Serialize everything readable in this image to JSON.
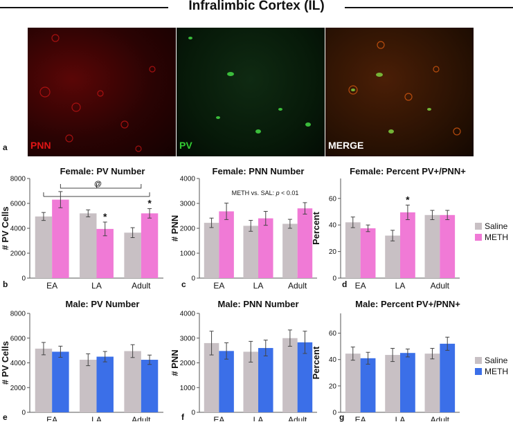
{
  "figure_title": "Infralimbic Cortex (IL)",
  "micrographs": [
    {
      "label": "PNN",
      "label_color": "#e01515"
    },
    {
      "label": "PV",
      "label_color": "#33cc33"
    },
    {
      "label": "MERGE",
      "label_color": "#ffffff"
    }
  ],
  "panel_letters": {
    "a": "a",
    "b": "b",
    "c": "c",
    "d": "d",
    "e": "e",
    "f": "f",
    "g": "g"
  },
  "legends": {
    "female": [
      {
        "name": "Saline",
        "color": "#c8c0c4"
      },
      {
        "name": "METH",
        "color": "#f07ad6"
      }
    ],
    "male": [
      {
        "name": "Saline",
        "color": "#c8c0c4"
      },
      {
        "name": "METH",
        "color": "#3b6fe8"
      }
    ]
  },
  "chart_data": [
    {
      "id": "b",
      "type": "bar",
      "title": "Female: PV Number",
      "xlabel": "",
      "ylabel": "# PV Cells",
      "categories": [
        "EA",
        "LA",
        "Adult"
      ],
      "ylim": [
        0,
        8000
      ],
      "yticks": [
        0,
        2000,
        4000,
        6000,
        8000
      ],
      "series": [
        {
          "name": "Saline",
          "values": [
            4950,
            5200,
            3650
          ],
          "errors": [
            320,
            280,
            400
          ]
        },
        {
          "name": "METH",
          "values": [
            6300,
            3950,
            5200
          ],
          "errors": [
            650,
            550,
            380
          ]
        }
      ],
      "annotations": {
        "stars": [
          [
            1,
            1
          ],
          [
            2,
            1
          ]
        ],
        "bracket_label": "@"
      }
    },
    {
      "id": "c",
      "type": "bar",
      "title": "Female: PNN Number",
      "xlabel": "",
      "ylabel": "# PNN",
      "categories": [
        "EA",
        "LA",
        "Adult"
      ],
      "ylim": [
        0,
        4000
      ],
      "yticks": [
        0,
        1000,
        2000,
        3000,
        4000
      ],
      "series": [
        {
          "name": "Saline",
          "values": [
            2220,
            2100,
            2180
          ],
          "errors": [
            190,
            220,
            180
          ]
        },
        {
          "name": "METH",
          "values": [
            2680,
            2400,
            2800
          ],
          "errors": [
            330,
            280,
            230
          ]
        }
      ],
      "annotations": {
        "note_prefix": "METH vs. SAL: ",
        "note_p": "p",
        "note_suffix": " < 0.01"
      }
    },
    {
      "id": "d",
      "type": "bar",
      "title": "Female: Percent PV+/PNN+",
      "xlabel": "",
      "ylabel": "Percent",
      "categories": [
        "EA",
        "LA",
        "Adult"
      ],
      "ylim": [
        0,
        75
      ],
      "yticks": [
        0,
        20,
        40,
        60
      ],
      "series": [
        {
          "name": "Saline",
          "values": [
            42,
            32,
            47.5
          ],
          "errors": [
            4,
            4,
            3.5
          ]
        },
        {
          "name": "METH",
          "values": [
            37.5,
            49.5,
            47.5
          ],
          "errors": [
            2.5,
            5.5,
            3.5
          ]
        }
      ],
      "annotations": {
        "stars": [
          [
            1,
            1
          ]
        ]
      }
    },
    {
      "id": "e",
      "type": "bar",
      "title": "Male: PV Number",
      "xlabel": "",
      "ylabel": "# PV Cells",
      "categories": [
        "EA",
        "LA",
        "Adult"
      ],
      "ylim": [
        0,
        8000
      ],
      "yticks": [
        0,
        2000,
        4000,
        6000,
        8000
      ],
      "series": [
        {
          "name": "Saline",
          "values": [
            5150,
            4250,
            4950
          ],
          "errors": [
            500,
            480,
            520
          ]
        },
        {
          "name": "METH",
          "values": [
            4900,
            4500,
            4250
          ],
          "errors": [
            450,
            420,
            380
          ]
        }
      ]
    },
    {
      "id": "f",
      "type": "bar",
      "title": "Male: PNN Number",
      "xlabel": "",
      "ylabel": "# PNN",
      "categories": [
        "EA",
        "LA",
        "Adult"
      ],
      "ylim": [
        0,
        4000
      ],
      "yticks": [
        0,
        1000,
        2000,
        3000,
        4000
      ],
      "series": [
        {
          "name": "Saline",
          "values": [
            2800,
            2450,
            3000
          ],
          "errors": [
            480,
            420,
            330
          ]
        },
        {
          "name": "METH",
          "values": [
            2480,
            2600,
            2830
          ],
          "errors": [
            330,
            320,
            450
          ]
        }
      ]
    },
    {
      "id": "g",
      "type": "bar",
      "title": "Male: Percent PV+/PNN+",
      "xlabel": "",
      "ylabel": "Percent",
      "categories": [
        "EA",
        "LA",
        "Adult"
      ],
      "ylim": [
        0,
        75
      ],
      "yticks": [
        0,
        20,
        40,
        60
      ],
      "series": [
        {
          "name": "Saline",
          "values": [
            44.5,
            43.5,
            44.5
          ],
          "errors": [
            5,
            5,
            4
          ]
        },
        {
          "name": "METH",
          "values": [
            41,
            45,
            52
          ],
          "errors": [
            4.5,
            3,
            5
          ]
        }
      ]
    }
  ]
}
